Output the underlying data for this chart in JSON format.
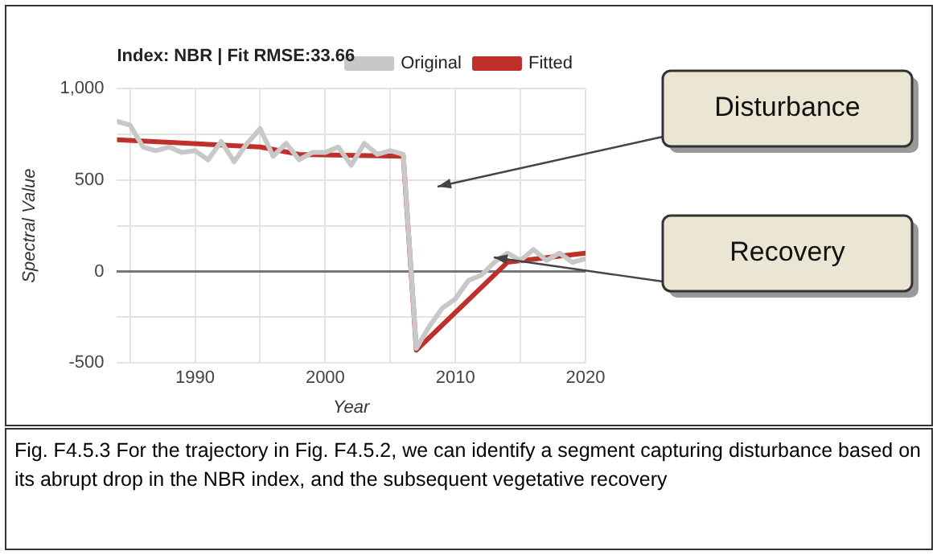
{
  "chart_data": {
    "type": "line",
    "title": "Index: NBR | Fit RMSE:33.66",
    "xlabel": "Year",
    "ylabel": "Spectral Value",
    "xlim": [
      1984,
      2020
    ],
    "xticks": [
      {
        "value": 1985,
        "label": null
      },
      1990,
      {
        "value": 1995,
        "label": null
      },
      2000,
      {
        "value": 2005,
        "label": null
      },
      2010,
      {
        "value": 2015,
        "label": null
      },
      2020
    ],
    "ylim": [
      -500,
      1000
    ],
    "yticks": [
      -500,
      {
        "value": -250,
        "label": null
      },
      0,
      {
        "value": 250,
        "label": null
      },
      500,
      {
        "value": 750,
        "label": null
      },
      {
        "value": 1000,
        "label": "1,000"
      }
    ],
    "grid": true,
    "legend": "top right",
    "marker": "none",
    "line_style": "solid",
    "series": [
      {
        "name": "Original",
        "color": "#c8c8c8",
        "x": [
          1984,
          1985,
          1986,
          1987,
          1988,
          1989,
          1990,
          1991,
          1992,
          1993,
          1994,
          1995,
          1996,
          1997,
          1998,
          1999,
          2000,
          2001,
          2002,
          2003,
          2004,
          2005,
          2006,
          2007,
          2008,
          2009,
          2010,
          2011,
          2012,
          2013,
          2014,
          2015,
          2016,
          2017,
          2018,
          2019,
          2020
        ],
        "values": [
          820,
          800,
          680,
          660,
          680,
          650,
          660,
          610,
          710,
          600,
          700,
          780,
          630,
          700,
          610,
          650,
          650,
          680,
          580,
          700,
          640,
          660,
          640,
          -420,
          -300,
          -200,
          -150,
          -50,
          -20,
          50,
          100,
          60,
          120,
          60,
          100,
          50,
          70
        ]
      },
      {
        "name": "Fitted",
        "color": "#c0302b",
        "x": [
          1984,
          1995,
          1998,
          2006,
          2007,
          2014,
          2020
        ],
        "values": [
          720,
          680,
          640,
          630,
          -430,
          50,
          100
        ]
      }
    ],
    "annotations": [
      "Disturbance",
      "Recovery",
      "Fig. F4.5.3 For the trajectory in Fig. F4.5.2, we can identify a segment capturing disturbance based on its abrupt drop in the NBR index, and the subsequent vegetative recovery"
    ]
  }
}
